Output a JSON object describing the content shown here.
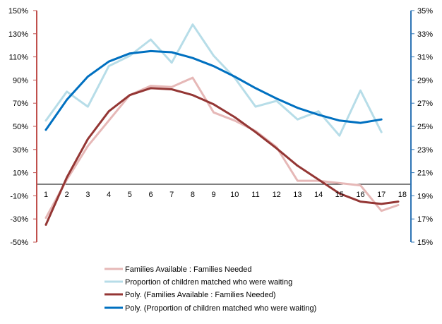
{
  "chart_data": {
    "type": "line",
    "title": "",
    "x": [
      "1",
      "2",
      "3",
      "4",
      "5",
      "6",
      "7",
      "8",
      "9",
      "10",
      "11",
      "12",
      "13",
      "14",
      "15",
      "16",
      "17",
      "18"
    ],
    "left_axis": {
      "ticks": [
        "150%",
        "130%",
        "110%",
        "90%",
        "70%",
        "50%",
        "30%",
        "10%",
        "-10%",
        "-30%",
        "-50%"
      ],
      "ylim": [
        -50,
        150
      ],
      "color": "#c0504d"
    },
    "right_axis": {
      "ticks": [
        "35%",
        "33%",
        "31%",
        "29%",
        "27%",
        "25%",
        "23%",
        "21%",
        "19%",
        "17%",
        "15%"
      ],
      "ylim": [
        15,
        35
      ],
      "color": "#2e74b5"
    },
    "x_axis_at": 0,
    "series": [
      {
        "name": "Families Available : Families Needed",
        "axis": "left",
        "color": "#e6b8b7",
        "points": [
          [
            1,
            -29
          ],
          [
            2,
            4
          ],
          [
            3,
            33
          ],
          [
            4,
            55
          ],
          [
            5,
            77
          ],
          [
            6,
            85
          ],
          [
            7,
            84
          ],
          [
            8,
            92
          ],
          [
            9,
            62
          ],
          [
            10,
            55
          ],
          [
            11,
            46
          ],
          [
            12,
            32
          ],
          [
            13,
            3
          ],
          [
            14,
            3
          ],
          [
            15,
            1
          ],
          [
            16,
            -1
          ],
          [
            17,
            -23
          ],
          [
            17.8,
            -18
          ]
        ]
      },
      {
        "name": "Proportion of children matched who were waiting",
        "axis": "right",
        "color": "#b7dde8",
        "points": [
          [
            1,
            25.5
          ],
          [
            2,
            28
          ],
          [
            3,
            26.7
          ],
          [
            4,
            30.2
          ],
          [
            5,
            31.1
          ],
          [
            6,
            32.5
          ],
          [
            7,
            30.5
          ],
          [
            8,
            33.8
          ],
          [
            9,
            31.1
          ],
          [
            10,
            29.2
          ],
          [
            11,
            26.7
          ],
          [
            12,
            27.2
          ],
          [
            13,
            25.6
          ],
          [
            14,
            26.3
          ],
          [
            15,
            24.2
          ],
          [
            16,
            28.1
          ],
          [
            17,
            24.5
          ]
        ]
      },
      {
        "name": "Poly. (Families Available : Families Needed)",
        "axis": "left",
        "color": "#943634",
        "points": [
          [
            1,
            -35
          ],
          [
            2,
            6
          ],
          [
            3,
            39
          ],
          [
            4,
            63
          ],
          [
            5,
            77
          ],
          [
            6,
            83
          ],
          [
            7,
            82
          ],
          [
            8,
            77
          ],
          [
            9,
            69
          ],
          [
            10,
            58
          ],
          [
            11,
            45
          ],
          [
            12,
            31
          ],
          [
            13,
            16
          ],
          [
            14,
            4
          ],
          [
            15,
            -8
          ],
          [
            16,
            -15
          ],
          [
            17,
            -17
          ],
          [
            17.8,
            -15
          ]
        ]
      },
      {
        "name": "Poly. (Proportion of children matched who were waiting)",
        "axis": "right",
        "color": "#0070c0",
        "points": [
          [
            1,
            24.7
          ],
          [
            2,
            27.3
          ],
          [
            3,
            29.3
          ],
          [
            4,
            30.6
          ],
          [
            5,
            31.3
          ],
          [
            6,
            31.5
          ],
          [
            7,
            31.4
          ],
          [
            8,
            30.9
          ],
          [
            9,
            30.2
          ],
          [
            10,
            29.3
          ],
          [
            11,
            28.3
          ],
          [
            12,
            27.4
          ],
          [
            13,
            26.6
          ],
          [
            14,
            26.0
          ],
          [
            15,
            25.5
          ],
          [
            16,
            25.3
          ],
          [
            17,
            25.6
          ]
        ]
      }
    ],
    "legend_position": "bottom"
  }
}
